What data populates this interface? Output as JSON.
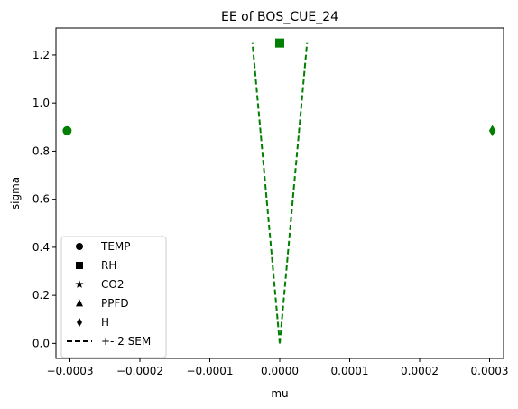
{
  "chart_data": {
    "type": "scatter",
    "title": "EE of BOS_CUE_24",
    "xlabel": "mu",
    "ylabel": "sigma",
    "xlim": [
      -0.00032,
      0.00032
    ],
    "ylim": [
      -0.0625,
      1.3125
    ],
    "xticks": [
      -0.0003,
      -0.0002,
      -0.0001,
      0,
      0.0001,
      0.0002,
      0.0003
    ],
    "xtick_labels": [
      "−0.0003",
      "−0.0002",
      "−0.0001",
      "0.0000",
      "0.0001",
      "0.0002",
      "0.0003"
    ],
    "yticks": [
      0.0,
      0.2,
      0.4,
      0.6,
      0.8,
      1.0,
      1.2
    ],
    "ytick_labels": [
      "0.0",
      "0.2",
      "0.4",
      "0.6",
      "0.8",
      "1.0",
      "1.2"
    ],
    "grid": false,
    "legend_position": "lower-left",
    "marker_color": "#007f00",
    "series": [
      {
        "name": "TEMP",
        "marker": "circle",
        "points": [
          [
            -0.000304,
            0.885
          ]
        ]
      },
      {
        "name": "RH",
        "marker": "square",
        "points": [
          [
            0.0,
            1.25
          ]
        ]
      },
      {
        "name": "CO2",
        "marker": "star",
        "points": []
      },
      {
        "name": "PPFD",
        "marker": "triangle",
        "points": []
      },
      {
        "name": "H",
        "marker": "diamond",
        "points": [
          [
            0.000304,
            0.885
          ]
        ]
      }
    ],
    "sem_lines": {
      "name": "+- 2 SEM",
      "style": "dashed",
      "lines": [
        [
          [
            0.0,
            0.0
          ],
          [
            -3.9e-05,
            1.25
          ]
        ],
        [
          [
            0.0,
            0.0
          ],
          [
            3.9e-05,
            1.25
          ]
        ]
      ]
    }
  }
}
